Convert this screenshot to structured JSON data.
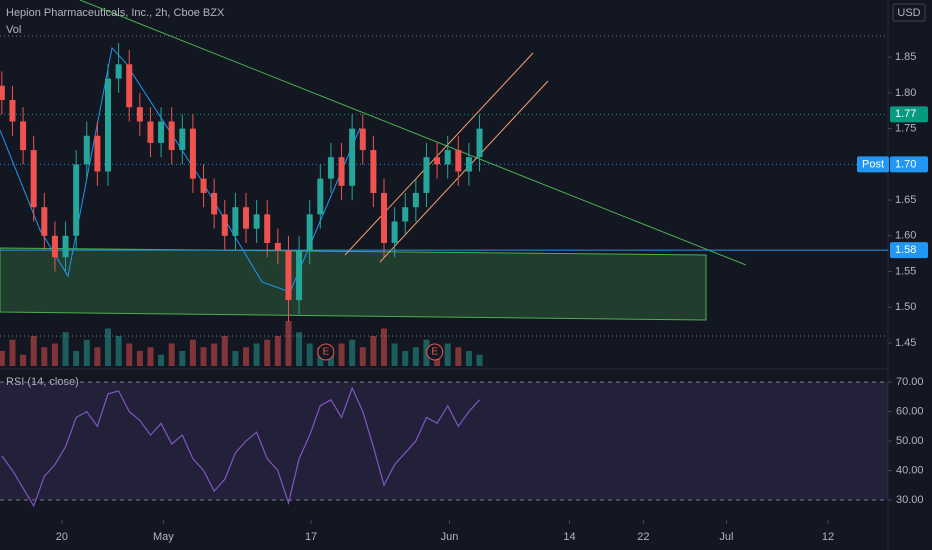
{
  "header": {
    "title": "Hepion Pharmaceuticals, Inc., 2h, Cboe BZX",
    "volume_label": "Vol",
    "currency": "USD"
  },
  "chart_data": [
    {
      "type": "candlestick",
      "x": [
        13.5,
        14.65,
        15.8,
        16.95,
        18.1,
        19.25,
        20.4,
        21.55,
        22.7,
        23.85,
        25,
        26.15,
        27.3,
        28.45,
        29.6,
        30.75,
        31.9,
        33.05,
        34.2,
        35.35,
        36.5,
        37.65,
        38.8,
        39.95,
        41.1,
        42.25,
        43.4,
        44.55,
        45.7,
        46.85,
        48,
        49.15,
        50.3,
        51.45,
        52.6,
        53.75,
        54.9,
        56.05,
        57.2,
        58.35,
        59.5,
        60.65,
        61.8,
        62.95,
        64.1,
        65.25
      ],
      "open": [
        1.81,
        1.79,
        1.76,
        1.72,
        1.64,
        1.6,
        1.57,
        1.6,
        1.7,
        1.74,
        1.69,
        1.82,
        1.84,
        1.78,
        1.76,
        1.73,
        1.76,
        1.72,
        1.75,
        1.68,
        1.66,
        1.63,
        1.6,
        1.64,
        1.61,
        1.63,
        1.59,
        1.58,
        1.51,
        1.58,
        1.63,
        1.68,
        1.71,
        1.67,
        1.75,
        1.72,
        1.66,
        1.59,
        1.62,
        1.64,
        1.66,
        1.71,
        1.7,
        1.72,
        1.69,
        1.71
      ],
      "high": [
        1.83,
        1.81,
        1.78,
        1.74,
        1.66,
        1.62,
        1.62,
        1.72,
        1.76,
        1.76,
        1.84,
        1.87,
        1.86,
        1.8,
        1.78,
        1.78,
        1.78,
        1.77,
        1.77,
        1.7,
        1.68,
        1.65,
        1.66,
        1.66,
        1.65,
        1.65,
        1.61,
        1.6,
        1.6,
        1.65,
        1.7,
        1.73,
        1.73,
        1.77,
        1.77,
        1.74,
        1.68,
        1.64,
        1.66,
        1.68,
        1.73,
        1.73,
        1.74,
        1.74,
        1.73,
        1.77
      ],
      "low": [
        1.77,
        1.74,
        1.7,
        1.62,
        1.58,
        1.55,
        1.55,
        1.58,
        1.68,
        1.67,
        1.67,
        1.8,
        1.76,
        1.74,
        1.71,
        1.71,
        1.7,
        1.7,
        1.66,
        1.64,
        1.61,
        1.58,
        1.58,
        1.59,
        1.59,
        1.57,
        1.56,
        1.48,
        1.49,
        1.56,
        1.61,
        1.66,
        1.65,
        1.65,
        1.7,
        1.64,
        1.57,
        1.57,
        1.6,
        1.62,
        1.64,
        1.68,
        1.68,
        1.67,
        1.67,
        1.69
      ],
      "close": [
        1.79,
        1.76,
        1.72,
        1.64,
        1.6,
        1.57,
        1.6,
        1.7,
        1.74,
        1.69,
        1.82,
        1.84,
        1.78,
        1.76,
        1.73,
        1.76,
        1.72,
        1.75,
        1.68,
        1.66,
        1.63,
        1.6,
        1.64,
        1.61,
        1.63,
        1.59,
        1.58,
        1.51,
        1.58,
        1.63,
        1.68,
        1.71,
        1.67,
        1.75,
        1.72,
        1.66,
        1.59,
        1.62,
        1.64,
        1.66,
        1.71,
        1.7,
        1.72,
        1.69,
        1.71,
        1.75
      ],
      "volume": [
        20,
        35,
        15,
        40,
        25,
        30,
        45,
        20,
        35,
        25,
        50,
        40,
        30,
        20,
        25,
        15,
        30,
        20,
        35,
        25,
        30,
        40,
        20,
        25,
        30,
        35,
        40,
        60,
        45,
        30,
        25,
        20,
        30,
        35,
        25,
        40,
        50,
        30,
        20,
        25,
        35,
        20,
        30,
        25,
        20,
        15
      ],
      "up_color": "#26a69a",
      "down_color": "#ef5350",
      "xlim": [
        13.3,
        109.5
      ],
      "xticks": [
        {
          "value": 20,
          "label": "20"
        },
        {
          "value": 31,
          "label": "May"
        },
        {
          "value": 47,
          "label": "17"
        },
        {
          "value": 62,
          "label": "Jun"
        },
        {
          "value": 75,
          "label": "14"
        },
        {
          "value": 83,
          "label": "22"
        },
        {
          "value": 92,
          "label": "Jul"
        },
        {
          "value": 103,
          "label": "12"
        }
      ],
      "ylim": [
        1.415,
        1.93
      ],
      "yticks": [
        1.85,
        {
          "value": 1.8,
          "label": "1.80"
        },
        1.75,
        1.65,
        {
          "value": 1.6,
          "label": "1.60"
        },
        1.55,
        {
          "value": 1.5,
          "label": "1.50"
        },
        1.45
      ],
      "price_lines": [
        {
          "value": 1.77,
          "color": "#089981",
          "style": "dotted"
        },
        {
          "name": "Post",
          "value": {
            "value": 1.7,
            "label": "1.70"
          },
          "color": "#2196f3",
          "style": "dotted"
        },
        {
          "value": 1.58,
          "color": "#2196f3",
          "style": "solid"
        }
      ],
      "markers": [
        {
          "label": "E",
          "x": 48.6
        },
        {
          "label": "E",
          "x": 60.4
        }
      ]
    },
    {
      "type": "line",
      "title": "RSI (14, close)",
      "color": "#7e57c2",
      "values": [
        45,
        40,
        34,
        28,
        38,
        42,
        48,
        58,
        60,
        55,
        66,
        67,
        60,
        57,
        52,
        56,
        49,
        52,
        44,
        40,
        33,
        37,
        46,
        50,
        53,
        44,
        40,
        29,
        44,
        52,
        62,
        64,
        58,
        68,
        60,
        48,
        35,
        42,
        46,
        50,
        58,
        56,
        62,
        55,
        60,
        64
      ],
      "ylim": [
        23.2,
        74.1
      ],
      "yticks": [
        {
          "value": 70,
          "label": "70.00"
        },
        {
          "value": 60,
          "label": "60.00"
        },
        {
          "value": 50,
          "label": "50.00"
        },
        {
          "value": 40,
          "label": "40.00"
        },
        {
          "value": 30,
          "label": "30.00"
        }
      ],
      "band": [
        30,
        70
      ]
    }
  ]
}
